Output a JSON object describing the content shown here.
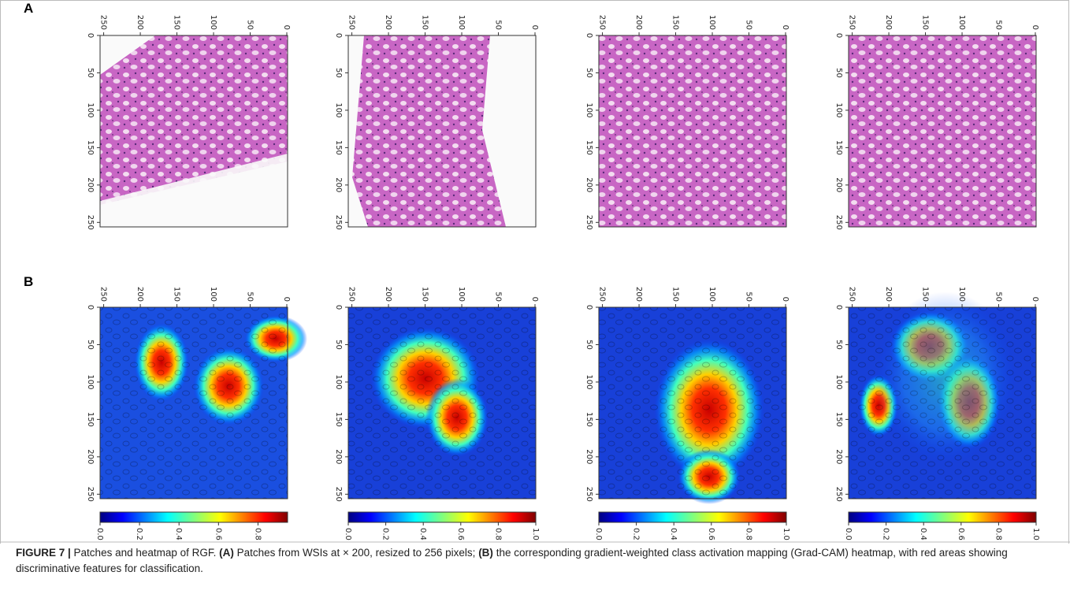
{
  "figure": {
    "rows": [
      {
        "label": "A",
        "panels": [
          {
            "xticks": [
              "250",
              "200",
              "150",
              "100",
              "50",
              "0"
            ],
            "yticks": [
              "0",
              "50",
              "100",
              "150",
              "200",
              "250"
            ]
          },
          {
            "xticks": [
              "250",
              "200",
              "150",
              "100",
              "50",
              "0"
            ],
            "yticks": [
              "0",
              "50",
              "100",
              "150",
              "200",
              "250"
            ]
          },
          {
            "xticks": [
              "250",
              "200",
              "150",
              "100",
              "50",
              "0"
            ],
            "yticks": [
              "0",
              "50",
              "100",
              "150",
              "200",
              "250"
            ]
          },
          {
            "xticks": [
              "250",
              "200",
              "150",
              "100",
              "50",
              "0"
            ],
            "yticks": [
              "0",
              "50",
              "100",
              "150",
              "200",
              "250"
            ]
          }
        ]
      },
      {
        "label": "B",
        "panels": [
          {
            "xticks": [
              "250",
              "200",
              "150",
              "100",
              "50",
              "0"
            ],
            "yticks": [
              "0",
              "50",
              "100",
              "150",
              "200",
              "250"
            ],
            "colorbar_ticks": [
              "0.0",
              "0.2",
              "0.4",
              "0.6",
              "0.8"
            ]
          },
          {
            "xticks": [
              "250",
              "200",
              "150",
              "100",
              "50",
              "0"
            ],
            "yticks": [
              "0",
              "50",
              "100",
              "150",
              "200",
              "250"
            ],
            "colorbar_ticks": [
              "0.0",
              "0.2",
              "0.4",
              "0.6",
              "0.8",
              "1.0"
            ]
          },
          {
            "xticks": [
              "250",
              "200",
              "150",
              "100",
              "50",
              "0"
            ],
            "yticks": [
              "0",
              "50",
              "100",
              "150",
              "200",
              "250"
            ],
            "colorbar_ticks": [
              "0.0",
              "0.2",
              "0.4",
              "0.6",
              "0.8",
              "1.0"
            ]
          },
          {
            "xticks": [
              "250",
              "200",
              "150",
              "100",
              "50",
              "0"
            ],
            "yticks": [
              "0",
              "50",
              "100",
              "150",
              "200",
              "250"
            ],
            "colorbar_ticks": [
              "0.0",
              "0.2",
              "0.4",
              "0.6",
              "0.8",
              "1.0"
            ]
          }
        ]
      }
    ]
  },
  "caption": {
    "segments": [
      {
        "text": "FIGURE 7 |",
        "bold": true
      },
      {
        "text": " Patches and heatmap of RGF. ",
        "bold": false
      },
      {
        "text": "(A)",
        "bold": true
      },
      {
        "text": " Patches from WSIs at × 200, resized to 256 pixels; ",
        "bold": false
      },
      {
        "text": "(B)",
        "bold": true
      },
      {
        "text": " the corresponding gradient-weighted class activation mapping (Grad-CAM) heatmap, with red areas showing discriminative features for classification.",
        "bold": false
      }
    ]
  }
}
